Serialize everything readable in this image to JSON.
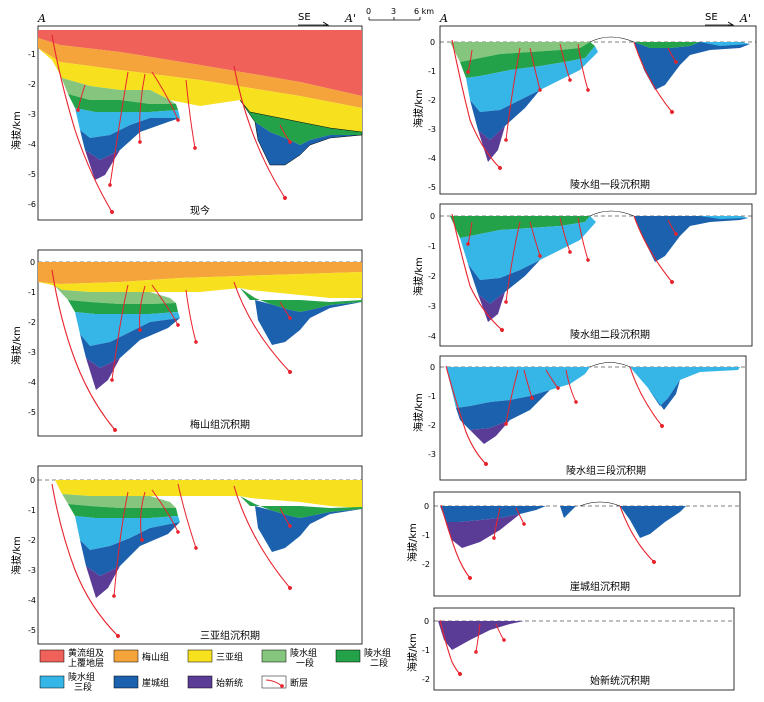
{
  "header": {
    "left_A": "A",
    "right_A": "A'",
    "se": "SE",
    "scale": [
      "0",
      "3",
      "6 km"
    ]
  },
  "y_axis_label": "海拔/km",
  "panels": [
    {
      "id": "present",
      "caption": "现今",
      "ticks": [
        "-1",
        "-2",
        "-3",
        "-4",
        "-5",
        "-6"
      ]
    },
    {
      "id": "meishan",
      "caption": "梅山组沉积期",
      "ticks": [
        "0",
        "-1",
        "-2",
        "-3",
        "-4",
        "-5"
      ]
    },
    {
      "id": "sanya",
      "caption": "三亚组沉积期",
      "ticks": [
        "0",
        "-1",
        "-2",
        "-3",
        "-4",
        "-5"
      ]
    },
    {
      "id": "ls1",
      "caption": "陵水组一段沉积期",
      "ticks": [
        "0",
        "-1",
        "-2",
        "-3",
        "-4",
        "-5"
      ]
    },
    {
      "id": "ls2",
      "caption": "陵水组二段沉积期",
      "ticks": [
        "0",
        "-1",
        "-2",
        "-3",
        "-4"
      ]
    },
    {
      "id": "ls3",
      "caption": "陵水组三段沉积期",
      "ticks": [
        "0",
        "-1",
        "-2",
        "-3"
      ]
    },
    {
      "id": "yacheng",
      "caption": "崖城组沉积期",
      "ticks": [
        "0",
        "-1",
        "-2"
      ]
    },
    {
      "id": "shixin",
      "caption": "始新统沉积期",
      "ticks": [
        "0",
        "-1",
        "-2"
      ]
    }
  ],
  "legend": [
    {
      "label": "黄流组及",
      "label2": "上覆地层",
      "color": "#f0615a"
    },
    {
      "label": "梅山组",
      "label2": "",
      "color": "#f4a43a"
    },
    {
      "label": "三亚组",
      "label2": "",
      "color": "#f7e11e"
    },
    {
      "label": "陵水组",
      "label2": "一段",
      "color": "#86c57d"
    },
    {
      "label": "陵水组",
      "label2": "二段",
      "color": "#23a24a"
    },
    {
      "label": "陵水组",
      "label2": "三段",
      "color": "#35b6e6"
    },
    {
      "label": "崖城组",
      "label2": "",
      "color": "#1b61ad"
    },
    {
      "label": "始新统",
      "label2": "",
      "color": "#5a3c97"
    },
    {
      "label": "断层",
      "label2": "",
      "color": "#e8232d"
    }
  ]
}
